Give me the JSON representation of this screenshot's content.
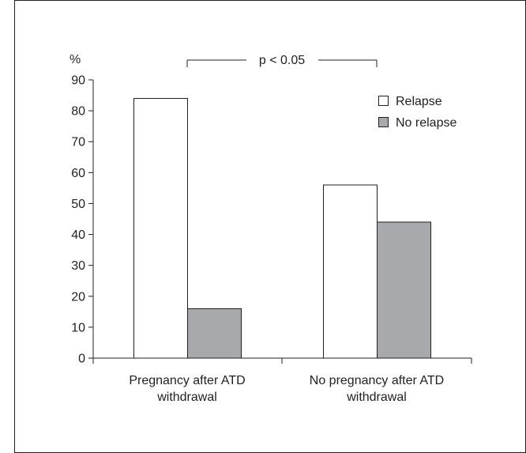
{
  "chart_data": {
    "type": "bar",
    "categories": [
      [
        "Pregnancy after ATD",
        "withdrawal"
      ],
      [
        "No pregnancy after ATD",
        "withdrawal"
      ]
    ],
    "series": [
      {
        "name": "Relapse",
        "values": [
          84,
          56
        ],
        "color": "#ffffff"
      },
      {
        "name": "No relapse",
        "values": [
          16,
          44
        ],
        "color": "#a7a9ac"
      }
    ],
    "ylabel": "%",
    "ylim": [
      0,
      90
    ],
    "yticks": [
      0,
      10,
      20,
      30,
      40,
      50,
      60,
      70,
      80,
      90
    ],
    "legend_position": "top-right",
    "grid": false,
    "annotation": "p < 0.05"
  }
}
